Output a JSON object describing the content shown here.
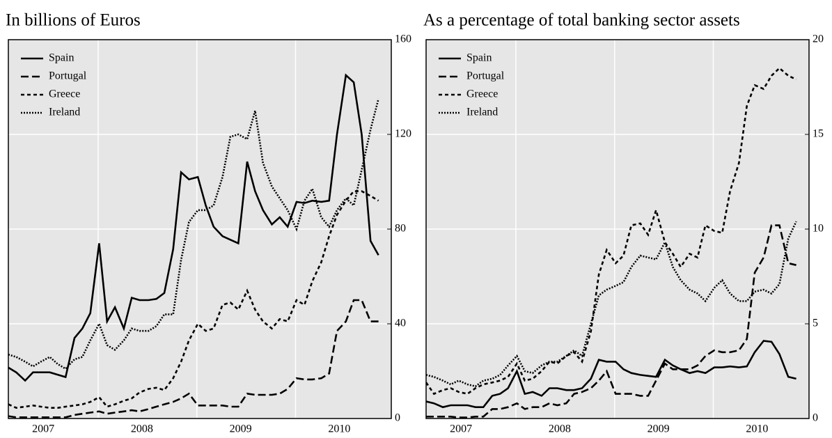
{
  "chart_data": [
    {
      "type": "line",
      "title": "In billions of Euros",
      "x": [
        2007.09,
        2007.17,
        2007.26,
        2007.34,
        2007.42,
        2007.51,
        2007.59,
        2007.67,
        2007.76,
        2007.84,
        2007.92,
        2008.01,
        2008.09,
        2008.17,
        2008.26,
        2008.34,
        2008.42,
        2008.51,
        2008.59,
        2008.67,
        2008.76,
        2008.84,
        2008.92,
        2009.01,
        2009.09,
        2009.17,
        2009.26,
        2009.34,
        2009.42,
        2009.51,
        2009.59,
        2009.67,
        2009.76,
        2009.84,
        2009.92,
        2010.01,
        2010.09,
        2010.17,
        2010.26,
        2010.34,
        2010.42,
        2010.51,
        2010.59,
        2010.67,
        2010.76,
        2010.84
      ],
      "xlim": [
        2007.09,
        2010.97
      ],
      "xticks": [
        {
          "value": 2007.5,
          "label": "2007"
        },
        {
          "value": 2008.5,
          "label": "2008"
        },
        {
          "value": 2009.5,
          "label": "2009"
        },
        {
          "value": 2010.5,
          "label": "2010"
        }
      ],
      "xgrid": [
        2008,
        2009,
        2010
      ],
      "ylim": [
        0,
        160
      ],
      "yticks": [
        0,
        40,
        80,
        120,
        160
      ],
      "grid": true,
      "legend": "upper left",
      "series": [
        {
          "name": "Spain",
          "color": "#000000",
          "dash": "none",
          "values": [
            21.5,
            19.5,
            16,
            19.5,
            19.5,
            19.5,
            18.5,
            17.5,
            34,
            38,
            44.5,
            74,
            41,
            47,
            38,
            51,
            50,
            50,
            50.5,
            53,
            71.5,
            104,
            101,
            102,
            90,
            81,
            77,
            75.5,
            74,
            108.5,
            96,
            88,
            82,
            85,
            81,
            91.5,
            91,
            92,
            91.5,
            92,
            120,
            145,
            142,
            120,
            75,
            69
          ]
        },
        {
          "name": "Portugal",
          "color": "#000000",
          "dash": "11,5",
          "values": [
            1,
            0.5,
            0.5,
            0.5,
            0.5,
            0.5,
            0.5,
            0.5,
            1.5,
            2,
            2.5,
            3,
            2,
            2.5,
            3,
            3.5,
            3,
            4,
            5,
            6,
            7,
            8.5,
            10.5,
            5.5,
            5.5,
            5.5,
            5.5,
            5,
            5,
            10.5,
            10,
            10,
            10,
            10.5,
            12.5,
            17,
            16.5,
            16.5,
            17,
            19,
            37,
            41,
            50,
            50,
            41,
            41
          ]
        },
        {
          "name": "Greece",
          "color": "#000000",
          "dash": "5,4",
          "values": [
            6,
            4.5,
            5,
            5.5,
            5,
            4.5,
            4.5,
            5,
            5.5,
            6,
            7,
            9,
            5,
            6,
            7.5,
            8.5,
            11,
            12.5,
            13,
            12,
            17,
            24,
            33,
            40,
            37,
            38,
            48,
            49,
            46,
            54,
            46,
            41,
            38,
            42,
            41,
            50,
            48,
            58,
            66,
            77,
            86,
            92,
            96,
            96,
            94,
            92
          ]
        },
        {
          "name": "Ireland",
          "color": "#000000",
          "dash": "2,2",
          "values": [
            27,
            26,
            24,
            22,
            24,
            26,
            23,
            21,
            25,
            26,
            33,
            40,
            31,
            29,
            33,
            38,
            37,
            37,
            39,
            44,
            44,
            67,
            83,
            88,
            88,
            90,
            102,
            119,
            120,
            118,
            130,
            108,
            98,
            93,
            88,
            80,
            92,
            97,
            85,
            81,
            88,
            93,
            90,
            105,
            122,
            135
          ]
        }
      ]
    },
    {
      "type": "line",
      "title": "As a percentage of total banking sector assets",
      "x": [
        2007.09,
        2007.17,
        2007.26,
        2007.34,
        2007.42,
        2007.51,
        2007.59,
        2007.67,
        2007.76,
        2007.84,
        2007.92,
        2008.01,
        2008.09,
        2008.17,
        2008.26,
        2008.34,
        2008.42,
        2008.51,
        2008.59,
        2008.67,
        2008.76,
        2008.84,
        2008.92,
        2009.01,
        2009.09,
        2009.17,
        2009.26,
        2009.34,
        2009.42,
        2009.51,
        2009.59,
        2009.67,
        2009.76,
        2009.84,
        2009.92,
        2010.01,
        2010.09,
        2010.17,
        2010.26,
        2010.34,
        2010.42,
        2010.51,
        2010.59,
        2010.67,
        2010.76,
        2010.84
      ],
      "xlim": [
        2007.09,
        2010.97
      ],
      "xticks": [
        {
          "value": 2007.5,
          "label": "2007"
        },
        {
          "value": 2008.5,
          "label": "2008"
        },
        {
          "value": 2009.5,
          "label": "2009"
        },
        {
          "value": 2010.5,
          "label": "2010"
        }
      ],
      "xgrid": [
        2008,
        2009,
        2010
      ],
      "ylim": [
        0,
        20
      ],
      "yticks": [
        0,
        5,
        10,
        15,
        20
      ],
      "grid": true,
      "legend": "upper left",
      "series": [
        {
          "name": "Spain",
          "color": "#000000",
          "dash": "none",
          "values": [
            0.9,
            0.8,
            0.6,
            0.7,
            0.7,
            0.7,
            0.6,
            0.6,
            1.2,
            1.3,
            1.6,
            2.5,
            1.3,
            1.4,
            1.2,
            1.6,
            1.6,
            1.5,
            1.5,
            1.6,
            2.1,
            3.1,
            3.0,
            3.0,
            2.6,
            2.4,
            2.3,
            2.25,
            2.2,
            3.1,
            2.8,
            2.6,
            2.4,
            2.5,
            2.4,
            2.7,
            2.7,
            2.75,
            2.7,
            2.75,
            3.5,
            4.1,
            4.05,
            3.4,
            2.2,
            2.1
          ]
        },
        {
          "name": "Portugal",
          "color": "#000000",
          "dash": "11,5",
          "values": [
            0.1,
            0.1,
            0.1,
            0.1,
            0.05,
            0.05,
            0.1,
            0.1,
            0.5,
            0.5,
            0.6,
            0.8,
            0.5,
            0.6,
            0.6,
            0.8,
            0.7,
            0.8,
            1.3,
            1.4,
            1.6,
            2.0,
            2.5,
            1.3,
            1.3,
            1.3,
            1.2,
            1.2,
            2.0,
            2.9,
            2.6,
            2.6,
            2.6,
            2.8,
            3.3,
            3.6,
            3.5,
            3.5,
            3.6,
            4.2,
            7.7,
            8.5,
            10.2,
            10.2,
            8.2,
            8.1
          ]
        },
        {
          "name": "Greece",
          "color": "#000000",
          "dash": "5,4",
          "values": [
            1.9,
            1.3,
            1.5,
            1.6,
            1.4,
            1.3,
            1.6,
            1.8,
            1.9,
            2.0,
            2.2,
            2.9,
            2.0,
            2.1,
            2.5,
            3.0,
            2.9,
            3.3,
            3.5,
            3.0,
            4.6,
            7.6,
            8.9,
            8.2,
            8.6,
            10.2,
            10.3,
            9.7,
            11.0,
            9.3,
            8.7,
            8.0,
            8.7,
            8.5,
            10.2,
            9.9,
            9.8,
            12.0,
            13.5,
            16.5,
            17.6,
            17.4,
            18.1,
            18.5,
            18.1,
            17.9
          ]
        },
        {
          "name": "Ireland",
          "color": "#000000",
          "dash": "2,2",
          "values": [
            2.3,
            2.2,
            2.0,
            1.8,
            2.0,
            1.8,
            1.7,
            2.0,
            2.1,
            2.3,
            2.8,
            3.3,
            2.5,
            2.4,
            2.8,
            3.0,
            3.0,
            3.3,
            3.6,
            3.3,
            5.0,
            6.5,
            6.8,
            7.0,
            7.2,
            8.0,
            8.6,
            8.5,
            8.4,
            9.3,
            8.0,
            7.3,
            6.8,
            6.6,
            6.2,
            6.9,
            7.3,
            6.6,
            6.2,
            6.2,
            6.7,
            6.8,
            6.6,
            7.1,
            9.5,
            10.4
          ]
        }
      ]
    }
  ]
}
